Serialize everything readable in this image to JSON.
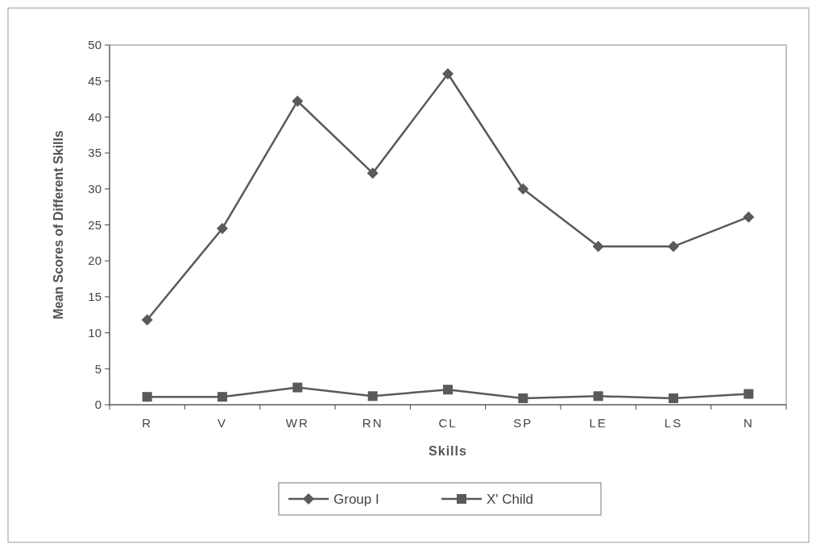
{
  "chart_data": {
    "type": "line",
    "xlabel": "Skills",
    "ylabel": "Mean Scores of Different Skills",
    "categories": [
      "R",
      "V",
      "WR",
      "RN",
      "CL",
      "SP",
      "LE",
      "LS",
      "N"
    ],
    "series": [
      {
        "name": "Group I",
        "color": "#5a5a5a",
        "marker": "diamond",
        "values": [
          11.8,
          24.5,
          42.2,
          32.2,
          46,
          30,
          22,
          22,
          26.1
        ]
      },
      {
        "name": "X' Child",
        "color": "#5a5a5a",
        "marker": "square",
        "values": [
          1.1,
          1.1,
          2.4,
          1.2,
          2.1,
          0.9,
          1.2,
          0.9,
          1.5
        ]
      }
    ],
    "ylim": [
      0,
      50
    ],
    "yticks": [
      0,
      5,
      10,
      15,
      20,
      25,
      30,
      35,
      40,
      45,
      50
    ],
    "grid": false,
    "legend": "bottom",
    "line_style": "solid"
  }
}
